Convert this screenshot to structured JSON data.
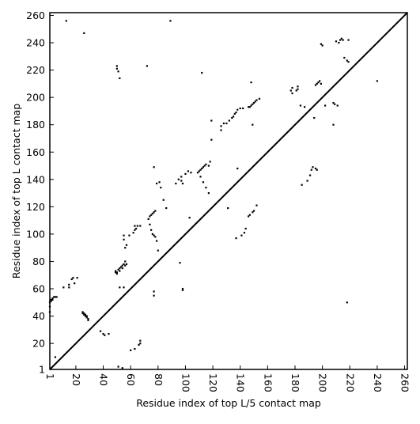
{
  "chart_data": {
    "type": "scatter",
    "title": "",
    "xlabel": "Residue index of top L/5 contact map",
    "ylabel": "Residue index of top L contact map",
    "xlim": [
      1,
      262
    ],
    "ylim": [
      1,
      262
    ],
    "x_ticks": [
      1,
      20,
      40,
      60,
      80,
      100,
      120,
      140,
      160,
      180,
      200,
      220,
      240,
      260
    ],
    "y_ticks": [
      1,
      20,
      40,
      60,
      80,
      100,
      120,
      140,
      160,
      180,
      200,
      220,
      240,
      260
    ],
    "marker_color": "#000000",
    "grid": false,
    "legend": "none",
    "diagonal": {
      "from": [
        1,
        1
      ],
      "to": [
        262,
        262
      ]
    },
    "points": [
      [
        1,
        43
      ],
      [
        1,
        47
      ],
      [
        1,
        50
      ],
      [
        2,
        51
      ],
      [
        2,
        52
      ],
      [
        3,
        52
      ],
      [
        3,
        53
      ],
      [
        4,
        54
      ],
      [
        5,
        54
      ],
      [
        6,
        54
      ],
      [
        5,
        10
      ],
      [
        11,
        61
      ],
      [
        13,
        256
      ],
      [
        15,
        61
      ],
      [
        15,
        63
      ],
      [
        17,
        67
      ],
      [
        18,
        68
      ],
      [
        19,
        64
      ],
      [
        21,
        68
      ],
      [
        26,
        247
      ],
      [
        25,
        42
      ],
      [
        25,
        43
      ],
      [
        26,
        41
      ],
      [
        26,
        42
      ],
      [
        27,
        40
      ],
      [
        27,
        41
      ],
      [
        28,
        39
      ],
      [
        28,
        40
      ],
      [
        29,
        38
      ],
      [
        29,
        37
      ],
      [
        38,
        29
      ],
      [
        40,
        27
      ],
      [
        41,
        26
      ],
      [
        44,
        27
      ],
      [
        49,
        72
      ],
      [
        49,
        73
      ],
      [
        50,
        71
      ],
      [
        50,
        72
      ],
      [
        51,
        74
      ],
      [
        52,
        75
      ],
      [
        52,
        73
      ],
      [
        53,
        76
      ],
      [
        54,
        77
      ],
      [
        54,
        75
      ],
      [
        55,
        78
      ],
      [
        56,
        77
      ],
      [
        57,
        78
      ],
      [
        56,
        80
      ],
      [
        50,
        221
      ],
      [
        50,
        223
      ],
      [
        51,
        219
      ],
      [
        52,
        214
      ],
      [
        51,
        3
      ],
      [
        54,
        2
      ],
      [
        52,
        61
      ],
      [
        55,
        61
      ],
      [
        55,
        96
      ],
      [
        55,
        99
      ],
      [
        56,
        90
      ],
      [
        57,
        92
      ],
      [
        59,
        99
      ],
      [
        62,
        101
      ],
      [
        63,
        103
      ],
      [
        64,
        104
      ],
      [
        65,
        106
      ],
      [
        67,
        106
      ],
      [
        63,
        106
      ],
      [
        60,
        15
      ],
      [
        63,
        16
      ],
      [
        66,
        19
      ],
      [
        67,
        22
      ],
      [
        67,
        20
      ],
      [
        72,
        223
      ],
      [
        73,
        111
      ],
      [
        74,
        113
      ],
      [
        75,
        114
      ],
      [
        76,
        115
      ],
      [
        77,
        116
      ],
      [
        78,
        117
      ],
      [
        74,
        107
      ],
      [
        75,
        103
      ],
      [
        76,
        100
      ],
      [
        77,
        99
      ],
      [
        78,
        98
      ],
      [
        77,
        55
      ],
      [
        77,
        58
      ],
      [
        77,
        149
      ],
      [
        79,
        137
      ],
      [
        81,
        138
      ],
      [
        82,
        134
      ],
      [
        84,
        125
      ],
      [
        86,
        119
      ],
      [
        79,
        95
      ],
      [
        80,
        88
      ],
      [
        89,
        256
      ],
      [
        93,
        137
      ],
      [
        95,
        140
      ],
      [
        97,
        142
      ],
      [
        97,
        139
      ],
      [
        98,
        137
      ],
      [
        98,
        60
      ],
      [
        98,
        59
      ],
      [
        96,
        79
      ],
      [
        100,
        144
      ],
      [
        102,
        146
      ],
      [
        103,
        112
      ],
      [
        104,
        145
      ],
      [
        109,
        145
      ],
      [
        110,
        146
      ],
      [
        111,
        147
      ],
      [
        112,
        148
      ],
      [
        113,
        149
      ],
      [
        114,
        150
      ],
      [
        115,
        151
      ],
      [
        117,
        150
      ],
      [
        112,
        218
      ],
      [
        111,
        142
      ],
      [
        113,
        138
      ],
      [
        115,
        134
      ],
      [
        117,
        130
      ],
      [
        119,
        169
      ],
      [
        119,
        183
      ],
      [
        118,
        153
      ],
      [
        126,
        176
      ],
      [
        126,
        179
      ],
      [
        128,
        181
      ],
      [
        130,
        181
      ],
      [
        131,
        119
      ],
      [
        132,
        183
      ],
      [
        134,
        185
      ],
      [
        135,
        186
      ],
      [
        136,
        188
      ],
      [
        137,
        189
      ],
      [
        138,
        191
      ],
      [
        140,
        192
      ],
      [
        142,
        192
      ],
      [
        137,
        97
      ],
      [
        138,
        148
      ],
      [
        141,
        99
      ],
      [
        143,
        101
      ],
      [
        144,
        104
      ],
      [
        146,
        113
      ],
      [
        147,
        114
      ],
      [
        149,
        116
      ],
      [
        150,
        117
      ],
      [
        152,
        121
      ],
      [
        149,
        180
      ],
      [
        148,
        211
      ],
      [
        146,
        193
      ],
      [
        147,
        193
      ],
      [
        148,
        194
      ],
      [
        149,
        195
      ],
      [
        150,
        196
      ],
      [
        151,
        197
      ],
      [
        152,
        198
      ],
      [
        154,
        199
      ],
      [
        177,
        205
      ],
      [
        178,
        207
      ],
      [
        178,
        203
      ],
      [
        181,
        205
      ],
      [
        182,
        208
      ],
      [
        182,
        206
      ],
      [
        184,
        194
      ],
      [
        185,
        136
      ],
      [
        187,
        193
      ],
      [
        189,
        139
      ],
      [
        191,
        143
      ],
      [
        192,
        147
      ],
      [
        193,
        149
      ],
      [
        195,
        148
      ],
      [
        196,
        147
      ],
      [
        194,
        185
      ],
      [
        195,
        209
      ],
      [
        196,
        210
      ],
      [
        197,
        211
      ],
      [
        198,
        212
      ],
      [
        199,
        210
      ],
      [
        199,
        239
      ],
      [
        200,
        238
      ],
      [
        202,
        194
      ],
      [
        208,
        196
      ],
      [
        208,
        180
      ],
      [
        209,
        195
      ],
      [
        211,
        194
      ],
      [
        210,
        241
      ],
      [
        212,
        240
      ],
      [
        213,
        242
      ],
      [
        214,
        243
      ],
      [
        215,
        242
      ],
      [
        216,
        229
      ],
      [
        218,
        227
      ],
      [
        219,
        226
      ],
      [
        219,
        242
      ],
      [
        218,
        50
      ],
      [
        240,
        212
      ]
    ]
  }
}
